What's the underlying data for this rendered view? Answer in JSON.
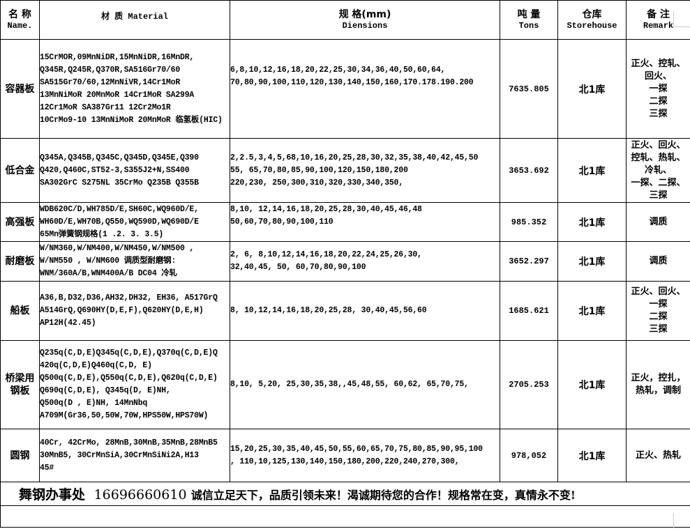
{
  "header": {
    "name_cn": "名 称",
    "name_en": "Name.",
    "material": "材 质 Material",
    "dims_cn": "规 格(mm)",
    "dims_en": "Diensions",
    "tons_cn": "吨 量",
    "tons_en": "Tons",
    "store_cn": "仓库",
    "store_en": "Storehouse",
    "remark_cn": "备 注",
    "remark_en": "Remark"
  },
  "rows": [
    {
      "name": [
        "容器板"
      ],
      "material": [
        "15CrMOR,09MnNiDR,15MnNiDR,16MnDR,",
        "Q345R,Q245R,Q370R,SA516Gr70/60",
        "SA515Gr70/60,12MnNiVR,14Cr1MoR",
        "13MnNiMoR 20MnMoR 14Cr1MoR SA299A",
        "12Cr1MoR SA387Gr11 12Cr2Mo1R",
        "10CrMo9-10 13MnNiMoR 20MnMoR 临氢板(HIC)"
      ],
      "dims": [
        "6,8,10,12,16,18,20,22,25,30,34,36,40,50,60,64,",
        "70,80,90,100,110,120,130,140,150,160,170.178.190.200",
        "",
        ""
      ],
      "tons": "7635.805",
      "store": "北1库",
      "remark": [
        "正火、控轧、",
        "回火、",
        "一探",
        "二探",
        "三探"
      ]
    },
    {
      "name": [
        "低合金"
      ],
      "material": [
        "Q345A,Q345B,Q345C,Q345D,Q345E,Q390",
        "Q420,Q460C,ST52-3,S355J2+N,SS400",
        "SA302GrC S275NL 35CrMo Q235B Q355B"
      ],
      "dims": [
        "2,2.5,3,4,5,68,10,16,20,25,28,30,32,35,38,40,42,45,50",
        "55, 65,70,80,85,90,100,120,150,180,200",
        "220,230, 250,300,310,320,330,340,350,"
      ],
      "tons": "3653.692",
      "store": "北1库",
      "remark": [
        "正火、回火、",
        "控轧、热轧、",
        "冷轧、",
        "一探、二探、",
        "三探"
      ]
    },
    {
      "name": [
        "高强板"
      ],
      "material": [
        "WDB620C/D,WH785D/E,SH60C,WQ960D/E,",
        "WH60D/E,WH70B,Q550,WQ590D,WQ690D/E",
        "65Mn弹簧钢规格(1 .2. 3. 3.5)"
      ],
      "dims": [
        "8,10, 12,14,16,18,20,25,28,30,40,45,46,48",
        "50,60,70,80,90,100,110",
        ""
      ],
      "tons": "985.352",
      "store": "北1库",
      "remark": [
        "调质"
      ]
    },
    {
      "name": [
        "耐磨板"
      ],
      "material": [
        "W/NM360,W/NM400,W/NM450,W/NM500    ,",
        "W/NM550 , W/NM600  调质型耐磨钢:",
        "WNM/360A/B,WNM400A/B DC04 冷轧"
      ],
      "dims": [
        "2, 6, 8,10,12,14,16,18,20,22,24,25,26,30,",
        "32,40,45, 50, 60,70,80,90,100"
      ],
      "tons": "3652.297",
      "store": "北1库",
      "remark": [
        "调质"
      ]
    },
    {
      "name": [
        "船板"
      ],
      "material": [
        "A36,B,D32,D36,AH32,DH32, EH36, A517GrQ",
        "A514GrQ,Q690HY(D,E,F),Q620HY(D,E,H)",
        "AP12H(42.45)"
      ],
      "dims": [
        "8, 10,12,14,16,18,20,25,28, 30,40,45,56,60"
      ],
      "tons": "1685.621",
      "store": "北1库",
      "remark": [
        "正火、回火、",
        "一探",
        "二探",
        "三探"
      ]
    },
    {
      "name": [
        "桥梁用",
        "钢板"
      ],
      "material": [
        "Q235q(C,D,E)Q345q(C,D,E),Q370q(C,D,E)Q",
        "420q(C,D,E)Q460q(C,D, E)",
        "Q500q(C,D,E),Q550q(C,D,E),Q620q(C,D,E)",
        "Q690q(C,D,E), Q345q(D, E)NH,",
        " Q500q(D , E)NH, 14MnNbq",
        "A709M(Gr36,50,50W,70W,HPS50W,HPS70W)"
      ],
      "dims": [
        "8,10, 5,20, 25,30,35,38,,45,48,55, 60,62, 65,70,75,"
      ],
      "tons": "2705.253",
      "store": "北1库",
      "remark": [
        "正火，控扎，",
        "热轧，调制"
      ]
    },
    {
      "name": [
        "圆钢"
      ],
      "material": [
        "40Cr, 42CrMo, 28MnB,30MnB,35MnB,28MnB5",
        "30MnB5, 30CrMnSiA,30CrMnSiNi2A,H13",
        "45#"
      ],
      "dims": [
        "15,20,25,30,35,40,45,50,55,60,65,70,75,80,85,90,95,100",
        ", 110,10,125,130,140,150,180,200,220,240,270,300,"
      ],
      "tons": "978,052",
      "store": "北1库",
      "remark": [
        "正火、热轧"
      ]
    }
  ],
  "footer": {
    "office": "舞钢办事处",
    "phone": "16696660610",
    "slogan": "诚信立足天下，品质引领未来！渴诚期待您的合作！规格常在变，真情永不变!"
  }
}
